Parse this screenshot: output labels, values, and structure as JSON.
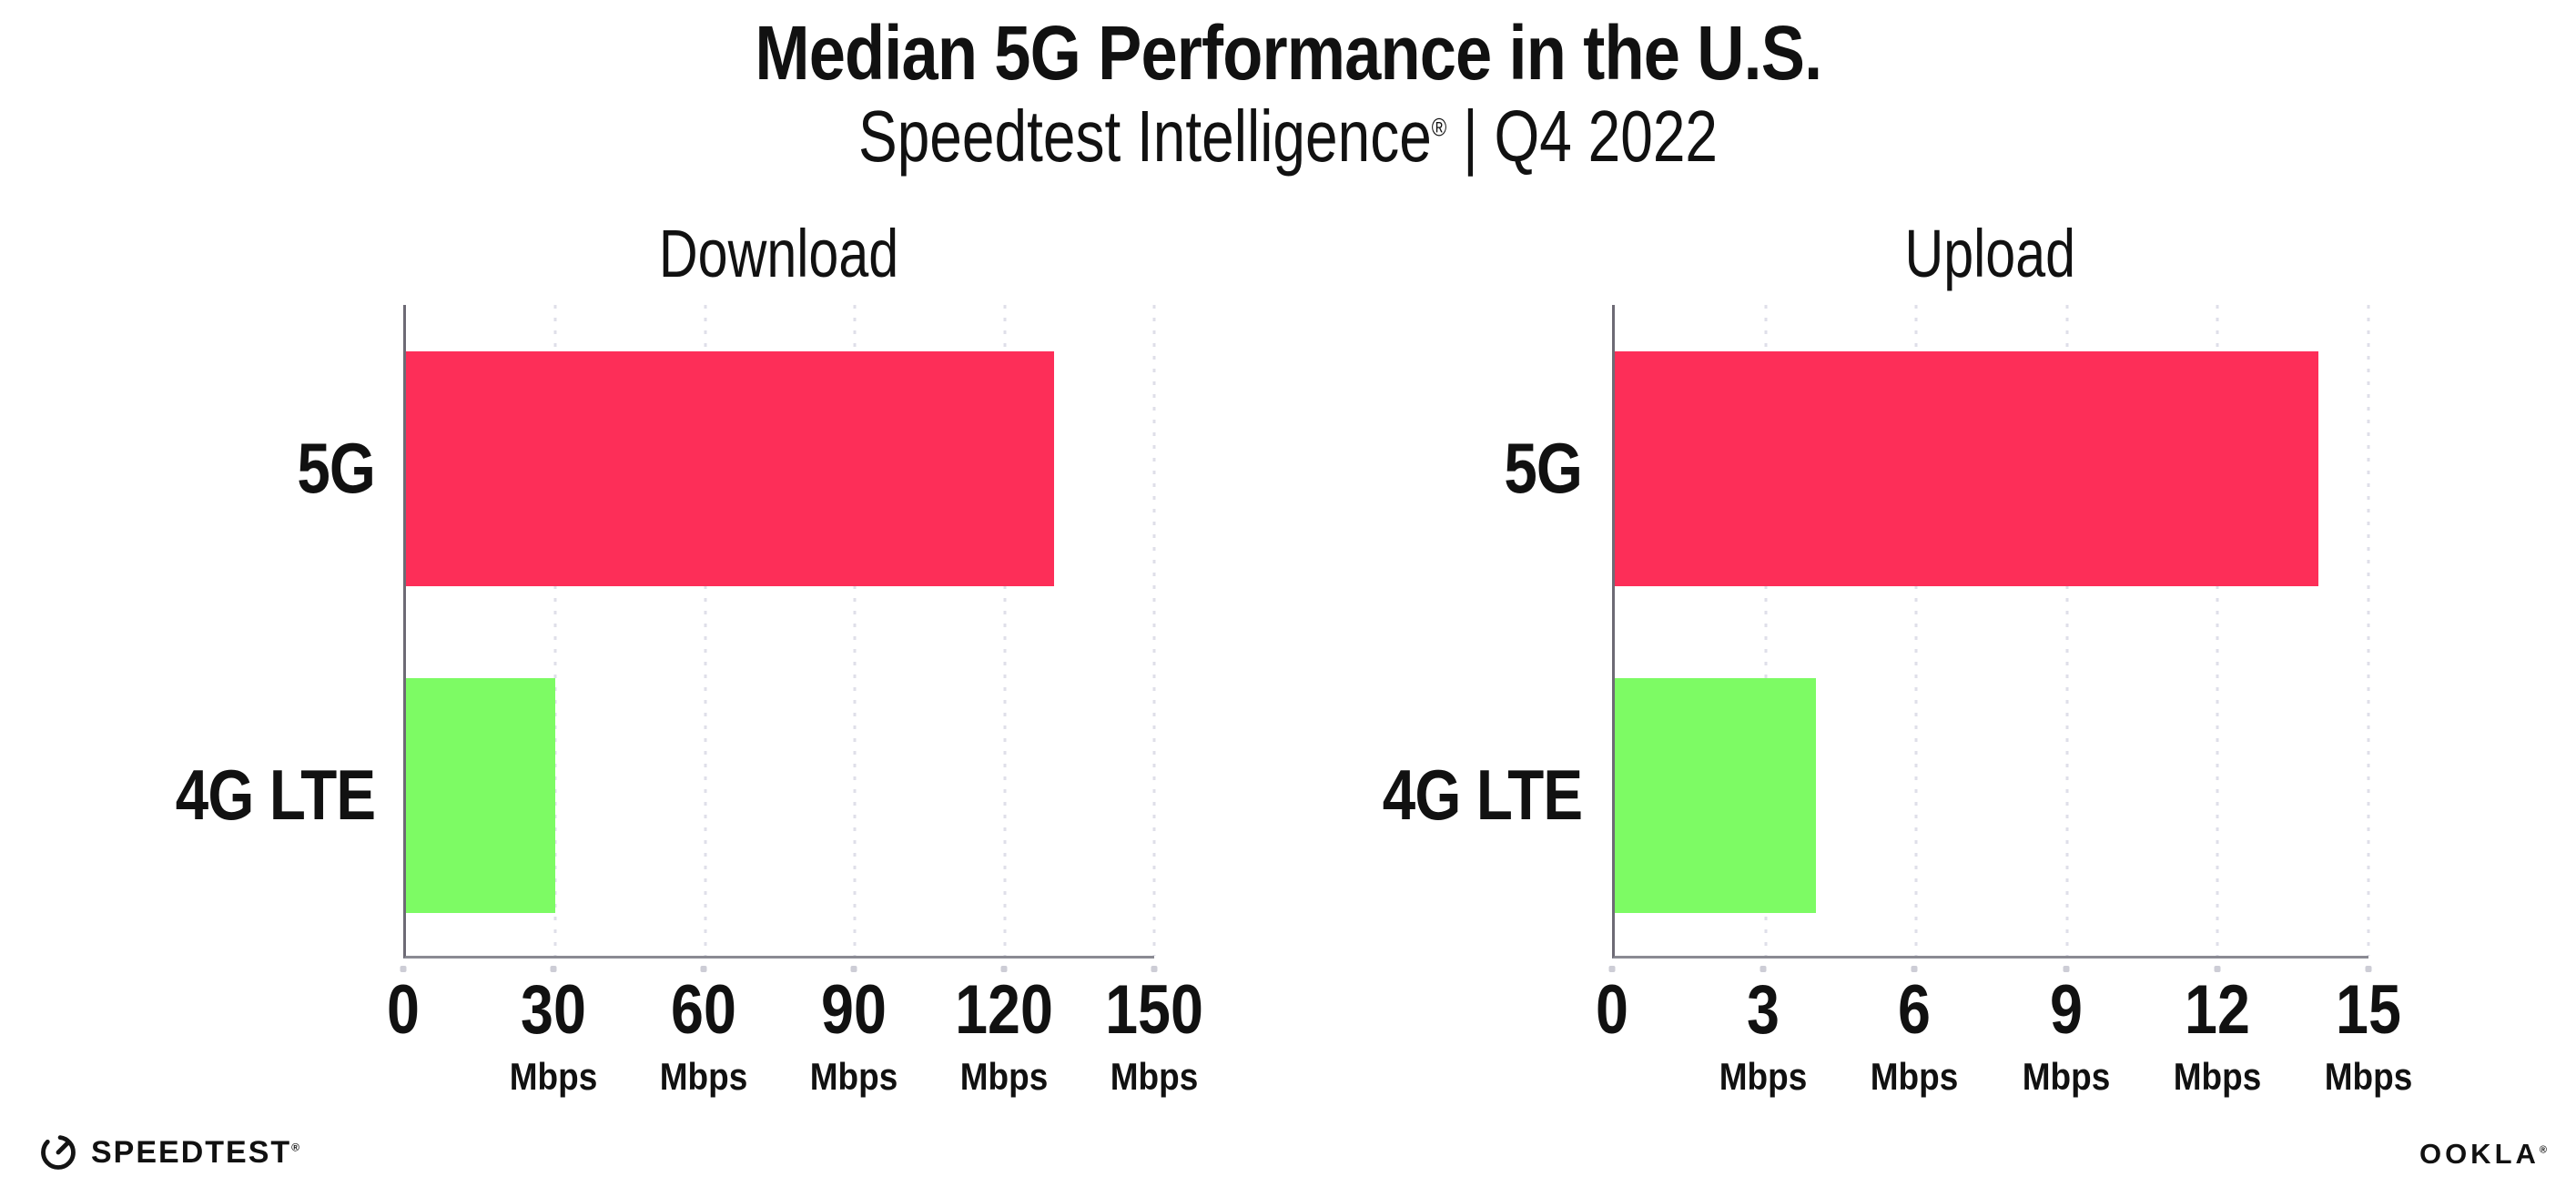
{
  "header": {
    "title": "Median 5G Performance in the U.S.",
    "subtitle_brand": "Speedtest Intelligence",
    "subtitle_registered": "®",
    "subtitle_period": " | Q4 2022"
  },
  "colors": {
    "bar_5g": "#FD2E58",
    "bar_4g_lte": "#7DFB64",
    "axis_line": "#8a8a93",
    "y_axis_line": "#6d6a75",
    "gridline": "#dfdfe9",
    "text": "#111111"
  },
  "chart_data": [
    {
      "type": "bar",
      "orientation": "horizontal",
      "title": "Download",
      "categories": [
        "5G",
        "4G LTE"
      ],
      "values": [
        130,
        30
      ],
      "unit": "Mbps",
      "xlim": [
        0,
        150
      ],
      "ticks": [
        0,
        30,
        60,
        90,
        120,
        150
      ],
      "bar_colors": [
        "#FD2E58",
        "#7DFB64"
      ],
      "grid": "dotted-vertical",
      "legend": "none"
    },
    {
      "type": "bar",
      "orientation": "horizontal",
      "title": "Upload",
      "categories": [
        "5G",
        "4G LTE"
      ],
      "values": [
        14,
        4
      ],
      "unit": "Mbps",
      "xlim": [
        0,
        15
      ],
      "ticks": [
        0,
        3,
        6,
        9,
        12,
        15
      ],
      "bar_colors": [
        "#FD2E58",
        "#7DFB64"
      ],
      "grid": "dotted-vertical",
      "legend": "none"
    }
  ],
  "footer": {
    "speedtest_label": "SPEEDTEST",
    "speedtest_registered": "®",
    "ookla_label": "OOKLA",
    "ookla_registered": "®"
  }
}
